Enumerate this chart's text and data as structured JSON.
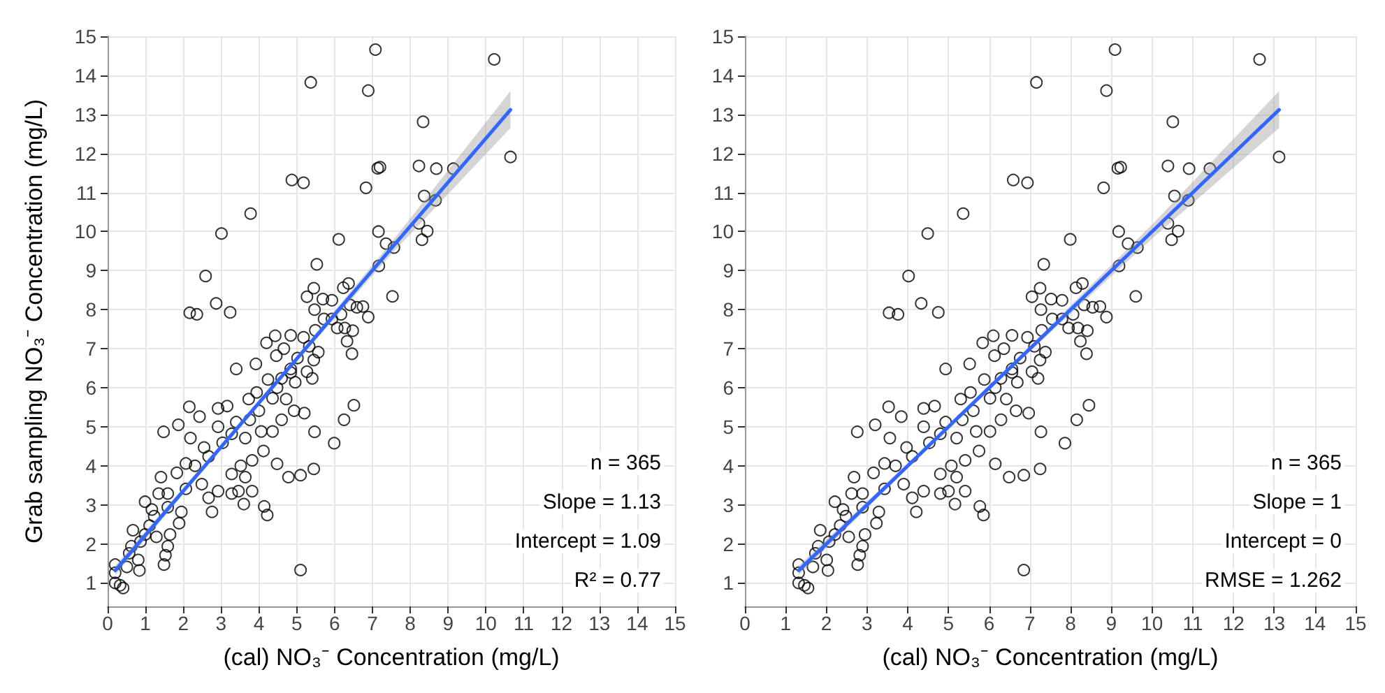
{
  "chart_data": [
    {
      "type": "scatter",
      "xlabel": "(cal) NO₃⁻ Concentration (mg/L)",
      "ylabel": "Grab sampling NO₃⁻ Concentration (mg/L)",
      "xlim": [
        0,
        15
      ],
      "ylim": [
        0.4,
        15
      ],
      "xticks": [
        0,
        1,
        2,
        3,
        4,
        5,
        6,
        7,
        8,
        9,
        10,
        11,
        12,
        13,
        14,
        15
      ],
      "yticks": [
        1,
        2,
        3,
        4,
        5,
        6,
        7,
        8,
        9,
        10,
        11,
        12,
        13,
        14,
        15
      ],
      "grid": true,
      "annotations": [
        "n = 365",
        "Slope = 1.13",
        "Intercept = 1.09",
        "R² = 0.77"
      ],
      "series": [
        {
          "color": "#000000",
          "marker": "circle",
          "x": [
            7.08,
            10.22,
            5.37,
            6.89,
            8.34,
            10.65,
            8.23,
            8.69,
            7.14,
            7.2,
            9.14,
            4.87,
            5.18,
            6.83,
            8.37,
            8.67,
            3.78,
            3.01,
            7.16,
            8.23,
            8.45,
            8.31,
            6.11,
            7.36,
            7.57,
            7.17,
            5.53,
            2.59,
            7.53,
            2.87,
            2.17,
            2.36,
            3.24,
            5.45,
            5.27,
            6.37,
            6.23,
            5.69,
            5.93,
            6.41,
            6.59,
            6.75,
            6.89,
            5.47,
            5.72,
            6.17,
            6.07,
            6.27,
            6.48,
            6.33,
            6.46,
            5.49,
            4.84,
            5.18,
            4.43,
            4.2,
            4.66,
            5.57,
            5.45,
            5.02,
            4.46,
            3.92,
            3.4,
            4.84,
            5.27,
            5.41,
            4.96,
            4.6,
            4.24,
            3.94,
            3.73,
            4.36,
            4.72,
            4.93,
            5.2,
            6.51,
            6.25,
            5.99,
            5.47,
            4.6,
            4.36,
            4.06,
            3.64,
            3.4,
            3.16,
            2.92,
            2.92,
            3.28,
            2.16,
            2.43,
            1.87,
            1.48,
            2.19,
            2.55,
            4.12,
            4.48,
            4.78,
            5.1,
            5.45,
            3.82,
            3.52,
            3.28,
            3.64,
            3.82,
            3.46,
            3.28,
            3.6,
            4.14,
            4.22,
            2.92,
            2.67,
            2.76,
            2.49,
            2.07,
            1.83,
            1.41,
            1.35,
            0.99,
            1.17,
            1.59,
            1.95,
            1.89,
            1.65,
            1.59,
            1.53,
            1.49,
            1.29,
            1.11,
            0.67,
            0.87,
            0.81,
            0.84,
            0.57,
            0.51,
            0.2,
            0.2,
            0.2,
            0.33,
            0.41,
            5.1,
            2.31,
            2.67,
            3.04,
            3.76,
            4.0,
            4.48,
            4.84,
            5.33,
            5.93,
            1.59,
            2.07,
            1.23,
            0.99,
            0.63
          ],
          "values": [
            14.66,
            14.41,
            13.82,
            13.61,
            12.81,
            11.91,
            11.68,
            11.61,
            11.62,
            11.65,
            11.61,
            11.32,
            11.25,
            11.12,
            10.91,
            10.8,
            10.46,
            9.95,
            10.0,
            10.21,
            10.01,
            9.79,
            9.8,
            9.69,
            9.59,
            9.12,
            9.16,
            8.86,
            8.34,
            8.16,
            7.92,
            7.88,
            7.93,
            8.55,
            8.33,
            8.67,
            8.56,
            8.27,
            8.24,
            8.12,
            8.06,
            8.08,
            7.81,
            8.0,
            7.76,
            7.88,
            7.53,
            7.53,
            7.46,
            7.19,
            6.87,
            7.47,
            7.34,
            7.29,
            7.33,
            7.15,
            7.0,
            6.91,
            6.71,
            6.76,
            6.82,
            6.61,
            6.48,
            6.39,
            6.41,
            6.24,
            6.14,
            6.24,
            6.21,
            5.88,
            5.71,
            5.73,
            5.71,
            5.41,
            5.35,
            5.55,
            5.18,
            4.58,
            4.87,
            5.18,
            4.88,
            4.88,
            4.71,
            5.12,
            5.53,
            5.47,
            5.0,
            4.82,
            5.51,
            5.26,
            5.05,
            4.87,
            4.71,
            4.47,
            4.38,
            4.05,
            3.71,
            3.76,
            3.92,
            4.14,
            4.0,
            3.79,
            3.71,
            3.35,
            3.35,
            3.29,
            3.02,
            2.96,
            2.74,
            3.35,
            3.18,
            2.82,
            3.53,
            4.06,
            3.82,
            3.71,
            3.29,
            3.08,
            2.88,
            2.94,
            2.82,
            2.53,
            2.24,
            1.94,
            1.71,
            1.47,
            2.18,
            2.47,
            2.35,
            2.06,
            1.59,
            1.32,
            1.76,
            1.41,
            1.47,
            1.26,
            1.0,
            0.94,
            0.87,
            1.33,
            4.0,
            4.24,
            4.59,
            5.18,
            5.41,
            6.0,
            6.48,
            7.06,
            7.76,
            3.29,
            3.41,
            2.71,
            2.24,
            1.94
          ]
        },
        {
          "type": "line",
          "color": "#3366ff",
          "x": [
            0.2,
            2.5,
            5,
            7.5,
            10.65
          ],
          "values": [
            1.32,
            3.92,
            6.74,
            9.57,
            13.12
          ],
          "lower": [
            1.2,
            3.85,
            6.67,
            9.42,
            12.65
          ],
          "upper": [
            1.44,
            3.99,
            6.81,
            9.72,
            13.6
          ]
        }
      ]
    },
    {
      "type": "scatter",
      "xlabel": "(cal) NO₃⁻ Concentration (mg/L)",
      "xlim": [
        0,
        15
      ],
      "ylim": [
        0.4,
        15
      ],
      "xticks": [
        0,
        1,
        2,
        3,
        4,
        5,
        6,
        7,
        8,
        9,
        10,
        11,
        12,
        13,
        14,
        15
      ],
      "yticks": [
        1,
        2,
        3,
        4,
        5,
        6,
        7,
        8,
        9,
        10,
        11,
        12,
        13,
        14,
        15
      ],
      "grid": true,
      "annotations": [
        "n = 365",
        "Slope = 1",
        "Intercept = 0",
        "RMSE = 1.262"
      ],
      "series": [
        {
          "color": "#000000",
          "marker": "circle",
          "x": [
            9.09,
            12.64,
            7.16,
            8.88,
            10.51,
            13.12,
            10.39,
            10.91,
            9.16,
            9.23,
            11.42,
            6.59,
            6.94,
            8.81,
            10.55,
            10.89,
            5.36,
            4.49,
            9.18,
            10.39,
            10.64,
            10.48,
            7.99,
            9.41,
            9.64,
            9.19,
            7.34,
            4.02,
            9.6,
            4.33,
            3.54,
            3.76,
            4.75,
            7.25,
            7.05,
            8.29,
            8.13,
            7.52,
            7.79,
            8.33,
            8.54,
            8.72,
            8.88,
            7.27,
            7.55,
            8.06,
            7.95,
            8.18,
            8.41,
            8.24,
            8.39,
            7.29,
            6.56,
            6.94,
            6.1,
            5.84,
            6.36,
            7.38,
            7.25,
            6.76,
            6.13,
            5.52,
            4.93,
            6.56,
            7.05,
            7.2,
            6.69,
            6.29,
            5.88,
            5.54,
            5.3,
            6.02,
            6.42,
            6.66,
            6.97,
            8.45,
            8.15,
            7.86,
            7.27,
            6.29,
            6.02,
            5.68,
            5.2,
            4.93,
            4.66,
            4.39,
            4.39,
            4.8,
            3.53,
            3.84,
            3.2,
            2.76,
            3.56,
            3.97,
            5.75,
            6.15,
            6.49,
            6.85,
            7.25,
            5.41,
            5.07,
            4.8,
            5.2,
            5.41,
            5.0,
            4.8,
            5.16,
            5.77,
            5.86,
            4.39,
            4.11,
            4.21,
            3.9,
            3.43,
            3.16,
            2.68,
            2.62,
            2.21,
            2.41,
            2.89,
            3.29,
            3.23,
            2.95,
            2.89,
            2.82,
            2.77,
            2.55,
            2.34,
            1.85,
            2.07,
            2.01,
            2.04,
            1.73,
            1.67,
            1.32,
            1.32,
            1.32,
            1.46,
            1.55,
            6.85,
            3.7,
            4.11,
            4.53,
            5.34,
            5.61,
            6.15,
            6.56,
            7.11,
            7.79,
            2.89,
            3.43,
            2.48,
            2.21,
            1.8
          ],
          "values": [
            14.66,
            14.41,
            13.82,
            13.61,
            12.81,
            11.91,
            11.68,
            11.61,
            11.62,
            11.65,
            11.61,
            11.32,
            11.25,
            11.12,
            10.91,
            10.8,
            10.46,
            9.95,
            10.0,
            10.21,
            10.01,
            9.79,
            9.8,
            9.69,
            9.59,
            9.12,
            9.16,
            8.86,
            8.34,
            8.16,
            7.92,
            7.88,
            7.93,
            8.55,
            8.33,
            8.67,
            8.56,
            8.27,
            8.24,
            8.12,
            8.06,
            8.08,
            7.81,
            8.0,
            7.76,
            7.88,
            7.53,
            7.53,
            7.46,
            7.19,
            6.87,
            7.47,
            7.34,
            7.29,
            7.33,
            7.15,
            7.0,
            6.91,
            6.71,
            6.76,
            6.82,
            6.61,
            6.48,
            6.39,
            6.41,
            6.24,
            6.14,
            6.24,
            6.21,
            5.88,
            5.71,
            5.73,
            5.71,
            5.41,
            5.35,
            5.55,
            5.18,
            4.58,
            4.87,
            5.18,
            4.88,
            4.88,
            4.71,
            5.12,
            5.53,
            5.47,
            5.0,
            4.82,
            5.51,
            5.26,
            5.05,
            4.87,
            4.71,
            4.47,
            4.38,
            4.05,
            3.71,
            3.76,
            3.92,
            4.14,
            4.0,
            3.79,
            3.71,
            3.35,
            3.35,
            3.29,
            3.02,
            2.96,
            2.74,
            3.35,
            3.18,
            2.82,
            3.53,
            4.06,
            3.82,
            3.71,
            3.29,
            3.08,
            2.88,
            2.94,
            2.82,
            2.53,
            2.24,
            1.94,
            1.71,
            1.47,
            2.18,
            2.47,
            2.35,
            2.06,
            1.59,
            1.32,
            1.76,
            1.41,
            1.47,
            1.26,
            1.0,
            0.94,
            0.87,
            1.33,
            4.0,
            4.24,
            4.59,
            5.18,
            5.41,
            6.0,
            6.48,
            7.06,
            7.76,
            3.29,
            3.41,
            2.71,
            2.24,
            1.94
          ]
        },
        {
          "type": "line",
          "color": "#3366ff",
          "x": [
            1.32,
            4,
            7,
            10,
            13.12
          ],
          "values": [
            1.32,
            4,
            7,
            10,
            13.12
          ],
          "lower": [
            1.2,
            3.93,
            6.93,
            9.82,
            12.65
          ],
          "upper": [
            1.44,
            4.07,
            7.07,
            10.18,
            13.6
          ]
        }
      ]
    }
  ]
}
